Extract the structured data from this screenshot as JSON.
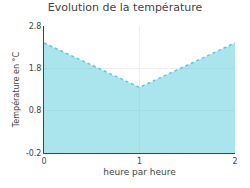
{
  "chart_data": {
    "type": "area",
    "title": "Evolution de la température",
    "xlabel": "heure par heure",
    "ylabel": "Température en °C",
    "x": [
      0,
      1,
      2
    ],
    "values": [
      2.4,
      1.35,
      2.4
    ],
    "xlim": [
      0,
      2
    ],
    "ylim": [
      -0.2,
      2.8
    ],
    "xticks": [
      0,
      1,
      2
    ],
    "yticks": [
      -0.2,
      0.8,
      1.8,
      2.8
    ],
    "color": "#55ccdd",
    "line_style": "dotted",
    "grid": true
  }
}
